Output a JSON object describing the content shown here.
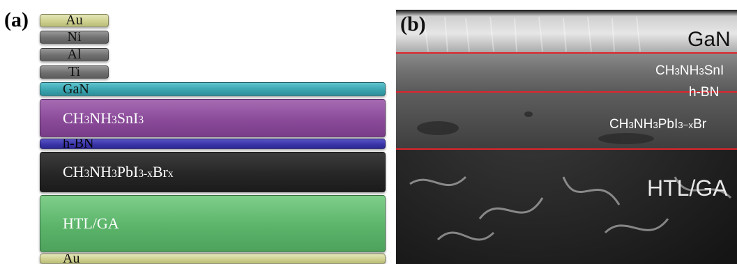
{
  "panel_a": {
    "label": "(a)",
    "layers": [
      {
        "id": "au-top",
        "name": "Au"
      },
      {
        "id": "ni",
        "name": "Ni"
      },
      {
        "id": "al",
        "name": "Al"
      },
      {
        "id": "ti",
        "name": "Ti"
      },
      {
        "id": "gan",
        "name": "GaN"
      },
      {
        "id": "sn",
        "name_parts": [
          "CH",
          "3",
          "NH",
          "3",
          "SnI",
          "3"
        ]
      },
      {
        "id": "bn",
        "name": "h-BN"
      },
      {
        "id": "pb",
        "name_parts": [
          "CH",
          "3",
          "NH",
          "3",
          "PbI",
          "3-x",
          "Br",
          "x"
        ]
      },
      {
        "id": "htl",
        "name": "HTL/GA"
      },
      {
        "id": "au-bottom",
        "name": "Au"
      }
    ]
  },
  "panel_b": {
    "label": "(b)",
    "labels": {
      "gan": "GaN",
      "sn_parts": [
        "CH",
        "3",
        "NH",
        "3",
        "SnI"
      ],
      "bn": "h-BN",
      "pb_parts": [
        "CH",
        "3",
        "NH",
        "3",
        "PbI",
        "3−x",
        "Br"
      ],
      "htl": "HTL/GA"
    },
    "divider_color": "#e0242b"
  }
}
